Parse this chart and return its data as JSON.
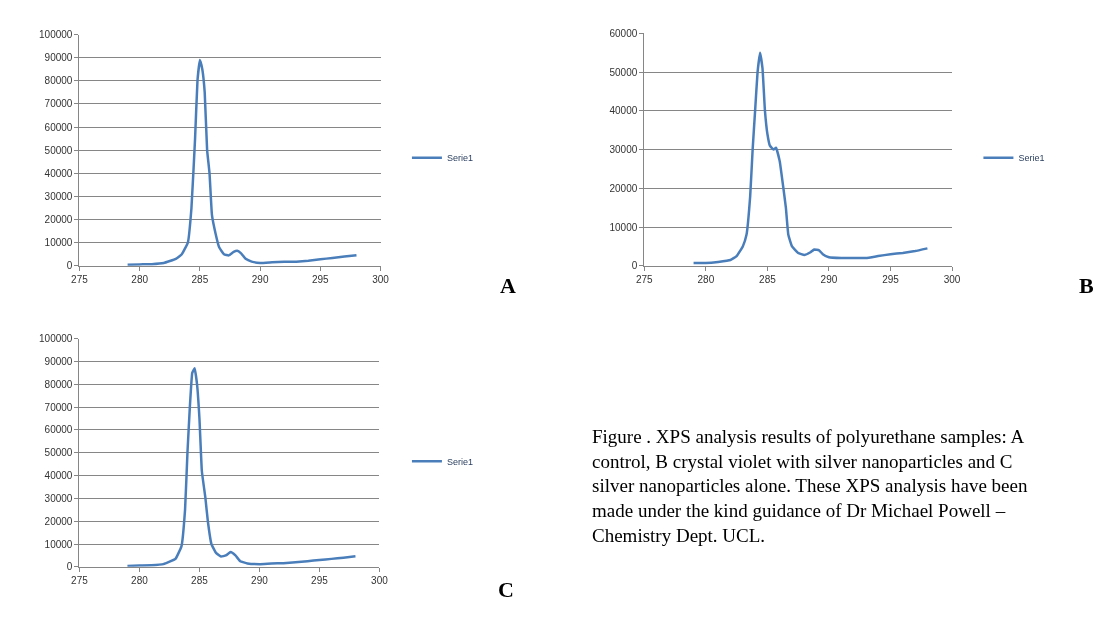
{
  "chart_data": [
    {
      "type": "line",
      "x": [
        279,
        280,
        281,
        282,
        283,
        283.5,
        284,
        284.3,
        284.6,
        284.8,
        285,
        285.2,
        285.4,
        285.6,
        285.8,
        286,
        286.3,
        286.6,
        287,
        287.4,
        287.8,
        288.1,
        288.4,
        288.8,
        289.3,
        290,
        291,
        292,
        293,
        294,
        295,
        296,
        297,
        298
      ],
      "series": [
        {
          "name": "Serie1",
          "color": "#4a7ebb",
          "values": [
            400,
            600,
            700,
            1200,
            3000,
            5000,
            10000,
            25000,
            55000,
            80000,
            89000,
            85000,
            75000,
            50000,
            40000,
            22000,
            14000,
            8000,
            5000,
            4500,
            6000,
            6500,
            5500,
            3000,
            1800,
            1200,
            1500,
            1700,
            1800,
            2200,
            2800,
            3400,
            4000,
            4600
          ]
        }
      ],
      "xlim": [
        275,
        300
      ],
      "xticks": [
        275,
        280,
        285,
        290,
        295,
        300
      ],
      "ylim": [
        0,
        100000
      ],
      "yticks": [
        0,
        10000,
        20000,
        30000,
        40000,
        50000,
        60000,
        70000,
        80000,
        90000,
        100000
      ],
      "grid": "y",
      "legend": "right",
      "line_style": "solid",
      "annotations": [
        "A"
      ]
    },
    {
      "type": "line",
      "x": [
        279,
        280,
        281,
        282,
        282.5,
        283,
        283.3,
        283.6,
        283.8,
        284,
        284.2,
        284.4,
        284.6,
        284.8,
        285,
        285.2,
        285.5,
        285.7,
        286,
        286.3,
        286.5,
        286.7,
        287,
        287.5,
        288,
        288.5,
        288.8,
        289.2,
        289.5,
        290,
        291,
        292,
        293,
        294,
        295,
        296,
        297,
        298
      ],
      "series": [
        {
          "name": "Serie1",
          "color": "#4a7ebb",
          "values": [
            700,
            700,
            1000,
            1500,
            2500,
            5000,
            8000,
            18000,
            30000,
            40000,
            50000,
            55000,
            51000,
            40000,
            34000,
            31000,
            30000,
            30500,
            27000,
            20000,
            15000,
            8000,
            5000,
            3300,
            2800,
            3500,
            4200,
            4000,
            3000,
            2200,
            2000,
            2000,
            2000,
            2500,
            3000,
            3300,
            3800,
            4500
          ]
        }
      ],
      "xlim": [
        275,
        300
      ],
      "xticks": [
        275,
        280,
        285,
        290,
        295,
        300
      ],
      "ylim": [
        0,
        60000
      ],
      "yticks": [
        0,
        10000,
        20000,
        30000,
        40000,
        50000,
        60000
      ],
      "grid": "y",
      "legend": "right",
      "line_style": "solid",
      "annotations": [
        "B"
      ]
    },
    {
      "type": "line",
      "x": [
        279,
        280,
        281,
        282,
        283,
        283.5,
        283.8,
        284,
        284.2,
        284.4,
        284.6,
        284.8,
        285,
        285.2,
        285.5,
        285.7,
        286,
        286.4,
        286.8,
        287.2,
        287.6,
        288,
        288.4,
        289,
        290,
        291,
        292,
        293,
        294,
        295,
        296,
        297,
        298
      ],
      "series": [
        {
          "name": "Serie1",
          "color": "#4a7ebb",
          "values": [
            400,
            600,
            700,
            1200,
            3500,
            9000,
            25000,
            50000,
            70000,
            85000,
            87000,
            80000,
            65000,
            42000,
            30000,
            20000,
            10000,
            6000,
            4500,
            5000,
            6500,
            5000,
            2500,
            1500,
            1200,
            1500,
            1600,
            2000,
            2500,
            3000,
            3500,
            4000,
            4600
          ]
        }
      ],
      "xlim": [
        275,
        300
      ],
      "xticks": [
        275,
        280,
        285,
        290,
        295,
        300
      ],
      "ylim": [
        0,
        100000
      ],
      "yticks": [
        0,
        10000,
        20000,
        30000,
        40000,
        50000,
        60000,
        70000,
        80000,
        90000,
        100000
      ],
      "grid": "y",
      "legend": "right",
      "line_style": "solid",
      "annotations": [
        "C"
      ]
    },
    {
      "type": "other",
      "annotations": [
        "Figure . XPS analysis results of polyurethane samples: A control, B crystal violet with silver nanoparticles and C silver nanoparticles alone. These XPS analysis have been made under the kind guidance of Dr Michael Powell – Chemistry Dept. UCL."
      ]
    }
  ]
}
